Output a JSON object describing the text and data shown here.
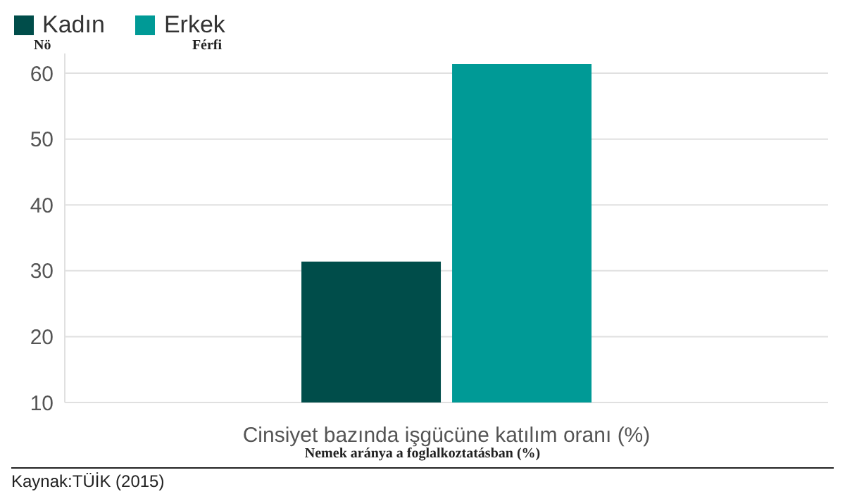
{
  "chart_data": {
    "type": "bar",
    "xlabel": "Cinsiyet bazında işgücüne katılım oranı (%)",
    "categories": [
      null
    ],
    "series": [
      {
        "name": "Kadın",
        "color": "#004d4a",
        "values": [
          31.4
        ]
      },
      {
        "name": "Erkek",
        "color": "#009a96",
        "values": [
          61.4
        ]
      }
    ],
    "ylim": [
      10,
      63
    ],
    "yticks": [
      10,
      20,
      30,
      40,
      50,
      60
    ],
    "grid": "y",
    "legend": "top left",
    "annotations": [
      "Nö",
      "Férfi",
      "Nemek aránya a foglalkoztatásban (%)",
      "Kaynak:TÜİK (2015)"
    ]
  }
}
